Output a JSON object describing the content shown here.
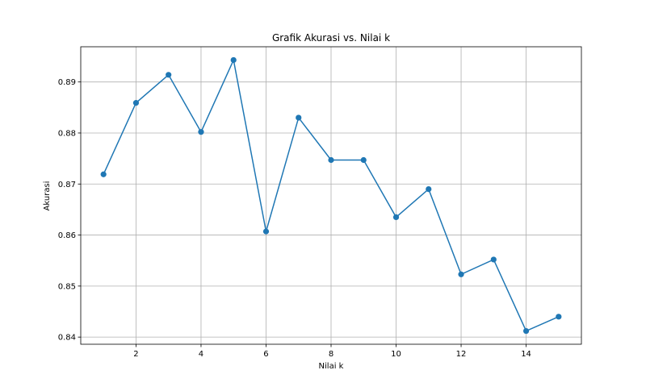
{
  "chart_data": {
    "type": "line",
    "title": "Grafik Akurasi vs. Nilai k",
    "xlabel": "Nilai k",
    "ylabel": "Akurasi",
    "x": [
      1,
      2,
      3,
      4,
      5,
      6,
      7,
      8,
      9,
      10,
      11,
      12,
      13,
      14,
      15
    ],
    "series": [
      {
        "values": [
          0.8719,
          0.8859,
          0.8914,
          0.8802,
          0.8943,
          0.8607,
          0.883,
          0.8747,
          0.8747,
          0.8635,
          0.869,
          0.8523,
          0.8552,
          0.8412,
          0.844
        ],
        "color": "#1f77b4",
        "marker": "circle"
      }
    ],
    "xlim": [
      0.3,
      15.7
    ],
    "ylim": [
      0.8386,
      0.8969
    ],
    "xticks": [
      2,
      4,
      6,
      8,
      10,
      12,
      14
    ],
    "yticks": [
      0.84,
      0.85,
      0.86,
      0.87,
      0.88,
      0.89
    ],
    "ytick_labels": [
      "0.84",
      "0.85",
      "0.86",
      "0.87",
      "0.88",
      "0.89"
    ],
    "grid": true,
    "grid_color": "#b0b0b0"
  }
}
